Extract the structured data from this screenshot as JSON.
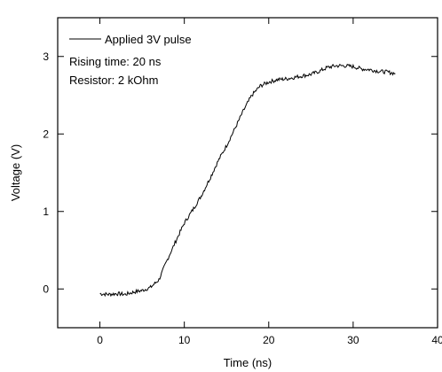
{
  "chart_data": {
    "type": "line",
    "xlabel": "Time (ns)",
    "ylabel": "Voltage (V)",
    "xlim": [
      -5,
      40
    ],
    "ylim": [
      -0.5,
      3.5
    ],
    "x_ticks": [
      0,
      10,
      20,
      30,
      40
    ],
    "x_tick_labels": [
      "0",
      "10",
      "20",
      "30",
      "40"
    ],
    "y_ticks": [
      0,
      1,
      2,
      3
    ],
    "y_tick_labels": [
      "0",
      "1",
      "2",
      "3"
    ],
    "grid": false,
    "legend_position": "top-left",
    "annotations": [
      "Rising time: 20 ns",
      "Resistor: 2 kOhm"
    ],
    "series": [
      {
        "name": "Applied 3V pulse",
        "color": "#000000",
        "x": [
          0,
          1,
          2,
          3,
          4,
          5,
          6,
          7,
          8,
          9,
          10,
          11,
          12,
          13,
          14,
          15,
          16,
          17,
          18,
          19,
          20,
          21,
          22,
          23,
          24,
          25,
          26,
          27,
          28,
          29,
          30,
          31,
          32,
          33,
          34,
          35
        ],
        "y": [
          -0.06,
          -0.07,
          -0.06,
          -0.07,
          -0.04,
          -0.02,
          0.02,
          0.12,
          0.38,
          0.62,
          0.85,
          1.02,
          1.2,
          1.42,
          1.65,
          1.85,
          2.07,
          2.3,
          2.5,
          2.62,
          2.67,
          2.7,
          2.71,
          2.73,
          2.75,
          2.77,
          2.81,
          2.86,
          2.88,
          2.88,
          2.87,
          2.84,
          2.83,
          2.81,
          2.8,
          2.78
        ]
      }
    ]
  }
}
